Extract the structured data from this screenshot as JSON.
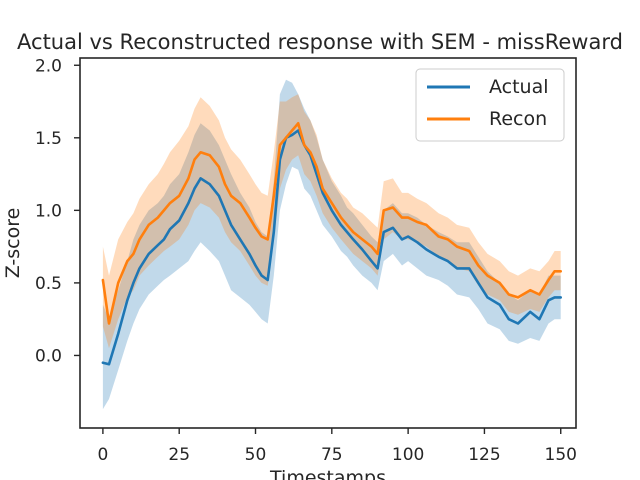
{
  "chart_data": {
    "type": "line",
    "title": "Actual vs Reconstructed response with SEM - missReward",
    "xlabel": "Timestamps",
    "ylabel": "Z-score",
    "xlim": [
      -7.5,
      155
    ],
    "ylim": [
      -0.5,
      2.05
    ],
    "xticks": [
      0,
      25,
      50,
      75,
      100,
      125,
      150
    ],
    "yticks": [
      0.0,
      0.5,
      1.0,
      1.5,
      2.0
    ],
    "xtick_labels": [
      "0",
      "25",
      "50",
      "75",
      "100",
      "125",
      "150"
    ],
    "ytick_labels": [
      "0.0",
      "0.5",
      "1.0",
      "1.5",
      "2.0"
    ],
    "grid": false,
    "legend_position": "top-right",
    "x": [
      0,
      2,
      5,
      8,
      10,
      12,
      15,
      18,
      20,
      22,
      25,
      28,
      30,
      32,
      35,
      38,
      40,
      42,
      45,
      48,
      50,
      52,
      54,
      56,
      58,
      60,
      62,
      64,
      66,
      68,
      70,
      72,
      75,
      78,
      80,
      82,
      85,
      88,
      90,
      92,
      95,
      98,
      100,
      103,
      106,
      110,
      113,
      116,
      120,
      123,
      126,
      130,
      133,
      136,
      140,
      143,
      146,
      148,
      150
    ],
    "series": [
      {
        "name": "Actual",
        "color": "#1f77b4",
        "values": [
          -0.05,
          -0.06,
          0.15,
          0.38,
          0.5,
          0.6,
          0.7,
          0.76,
          0.8,
          0.87,
          0.93,
          1.05,
          1.15,
          1.22,
          1.18,
          1.1,
          1.0,
          0.9,
          0.8,
          0.7,
          0.62,
          0.55,
          0.52,
          0.85,
          1.35,
          1.5,
          1.52,
          1.55,
          1.45,
          1.38,
          1.25,
          1.12,
          1.0,
          0.9,
          0.85,
          0.8,
          0.73,
          0.65,
          0.6,
          0.85,
          0.88,
          0.8,
          0.82,
          0.78,
          0.73,
          0.68,
          0.65,
          0.6,
          0.6,
          0.5,
          0.4,
          0.35,
          0.25,
          0.22,
          0.3,
          0.25,
          0.38,
          0.4,
          0.4
        ],
        "sem_lower": [
          -0.37,
          -0.3,
          -0.1,
          0.1,
          0.22,
          0.32,
          0.42,
          0.48,
          0.52,
          0.55,
          0.6,
          0.65,
          0.72,
          0.78,
          0.72,
          0.65,
          0.55,
          0.45,
          0.4,
          0.35,
          0.3,
          0.25,
          0.22,
          0.55,
          1.0,
          1.18,
          1.3,
          1.28,
          1.15,
          1.1,
          1.0,
          0.9,
          0.82,
          0.72,
          0.68,
          0.62,
          0.55,
          0.5,
          0.45,
          0.65,
          0.7,
          0.62,
          0.65,
          0.6,
          0.55,
          0.52,
          0.48,
          0.42,
          0.4,
          0.32,
          0.22,
          0.18,
          0.1,
          0.08,
          0.12,
          0.1,
          0.22,
          0.25,
          0.25
        ],
        "sem_upper": [
          0.35,
          0.25,
          0.45,
          0.65,
          0.8,
          0.9,
          1.0,
          1.05,
          1.1,
          1.18,
          1.25,
          1.4,
          1.52,
          1.6,
          1.55,
          1.45,
          1.35,
          1.25,
          1.12,
          1.02,
          0.92,
          0.85,
          0.82,
          1.2,
          1.8,
          1.9,
          1.88,
          1.8,
          1.7,
          1.62,
          1.5,
          1.35,
          1.2,
          1.1,
          1.02,
          0.98,
          0.9,
          0.82,
          0.78,
          1.0,
          1.05,
          0.98,
          0.98,
          0.95,
          0.9,
          0.85,
          0.82,
          0.78,
          0.78,
          0.68,
          0.58,
          0.5,
          0.42,
          0.38,
          0.45,
          0.42,
          0.55,
          0.55,
          0.55
        ]
      },
      {
        "name": "Recon",
        "color": "#ff7f0e",
        "values": [
          0.52,
          0.22,
          0.5,
          0.65,
          0.7,
          0.8,
          0.9,
          0.95,
          1.0,
          1.05,
          1.1,
          1.22,
          1.35,
          1.4,
          1.38,
          1.3,
          1.18,
          1.1,
          1.05,
          0.95,
          0.88,
          0.82,
          0.8,
          1.1,
          1.45,
          1.5,
          1.55,
          1.6,
          1.45,
          1.4,
          1.3,
          1.15,
          1.05,
          0.95,
          0.9,
          0.85,
          0.8,
          0.75,
          0.7,
          1.0,
          1.02,
          0.95,
          0.95,
          0.92,
          0.9,
          0.82,
          0.8,
          0.75,
          0.72,
          0.62,
          0.55,
          0.5,
          0.42,
          0.4,
          0.45,
          0.42,
          0.52,
          0.58,
          0.58
        ],
        "sem_lower": [
          0.2,
          0.05,
          0.25,
          0.4,
          0.45,
          0.55,
          0.62,
          0.68,
          0.72,
          0.75,
          0.8,
          0.9,
          1.0,
          1.05,
          1.02,
          0.95,
          0.85,
          0.78,
          0.72,
          0.62,
          0.55,
          0.5,
          0.48,
          0.8,
          1.15,
          1.28,
          1.35,
          1.38,
          1.25,
          1.2,
          1.1,
          0.98,
          0.88,
          0.8,
          0.75,
          0.7,
          0.65,
          0.6,
          0.55,
          0.8,
          0.85,
          0.8,
          0.8,
          0.78,
          0.75,
          0.68,
          0.65,
          0.6,
          0.58,
          0.48,
          0.42,
          0.38,
          0.3,
          0.28,
          0.32,
          0.3,
          0.4,
          0.45,
          0.45
        ],
        "sem_upper": [
          0.75,
          0.55,
          0.8,
          0.92,
          0.98,
          1.08,
          1.18,
          1.25,
          1.32,
          1.4,
          1.48,
          1.58,
          1.7,
          1.78,
          1.72,
          1.62,
          1.5,
          1.42,
          1.35,
          1.25,
          1.18,
          1.12,
          1.1,
          1.4,
          1.75,
          1.75,
          1.78,
          1.8,
          1.68,
          1.62,
          1.52,
          1.35,
          1.22,
          1.12,
          1.08,
          1.02,
          0.98,
          0.92,
          0.88,
          1.2,
          1.22,
          1.12,
          1.12,
          1.08,
          1.05,
          0.98,
          0.95,
          0.9,
          0.88,
          0.78,
          0.7,
          0.65,
          0.58,
          0.55,
          0.6,
          0.58,
          0.65,
          0.72,
          0.72
        ]
      }
    ]
  }
}
